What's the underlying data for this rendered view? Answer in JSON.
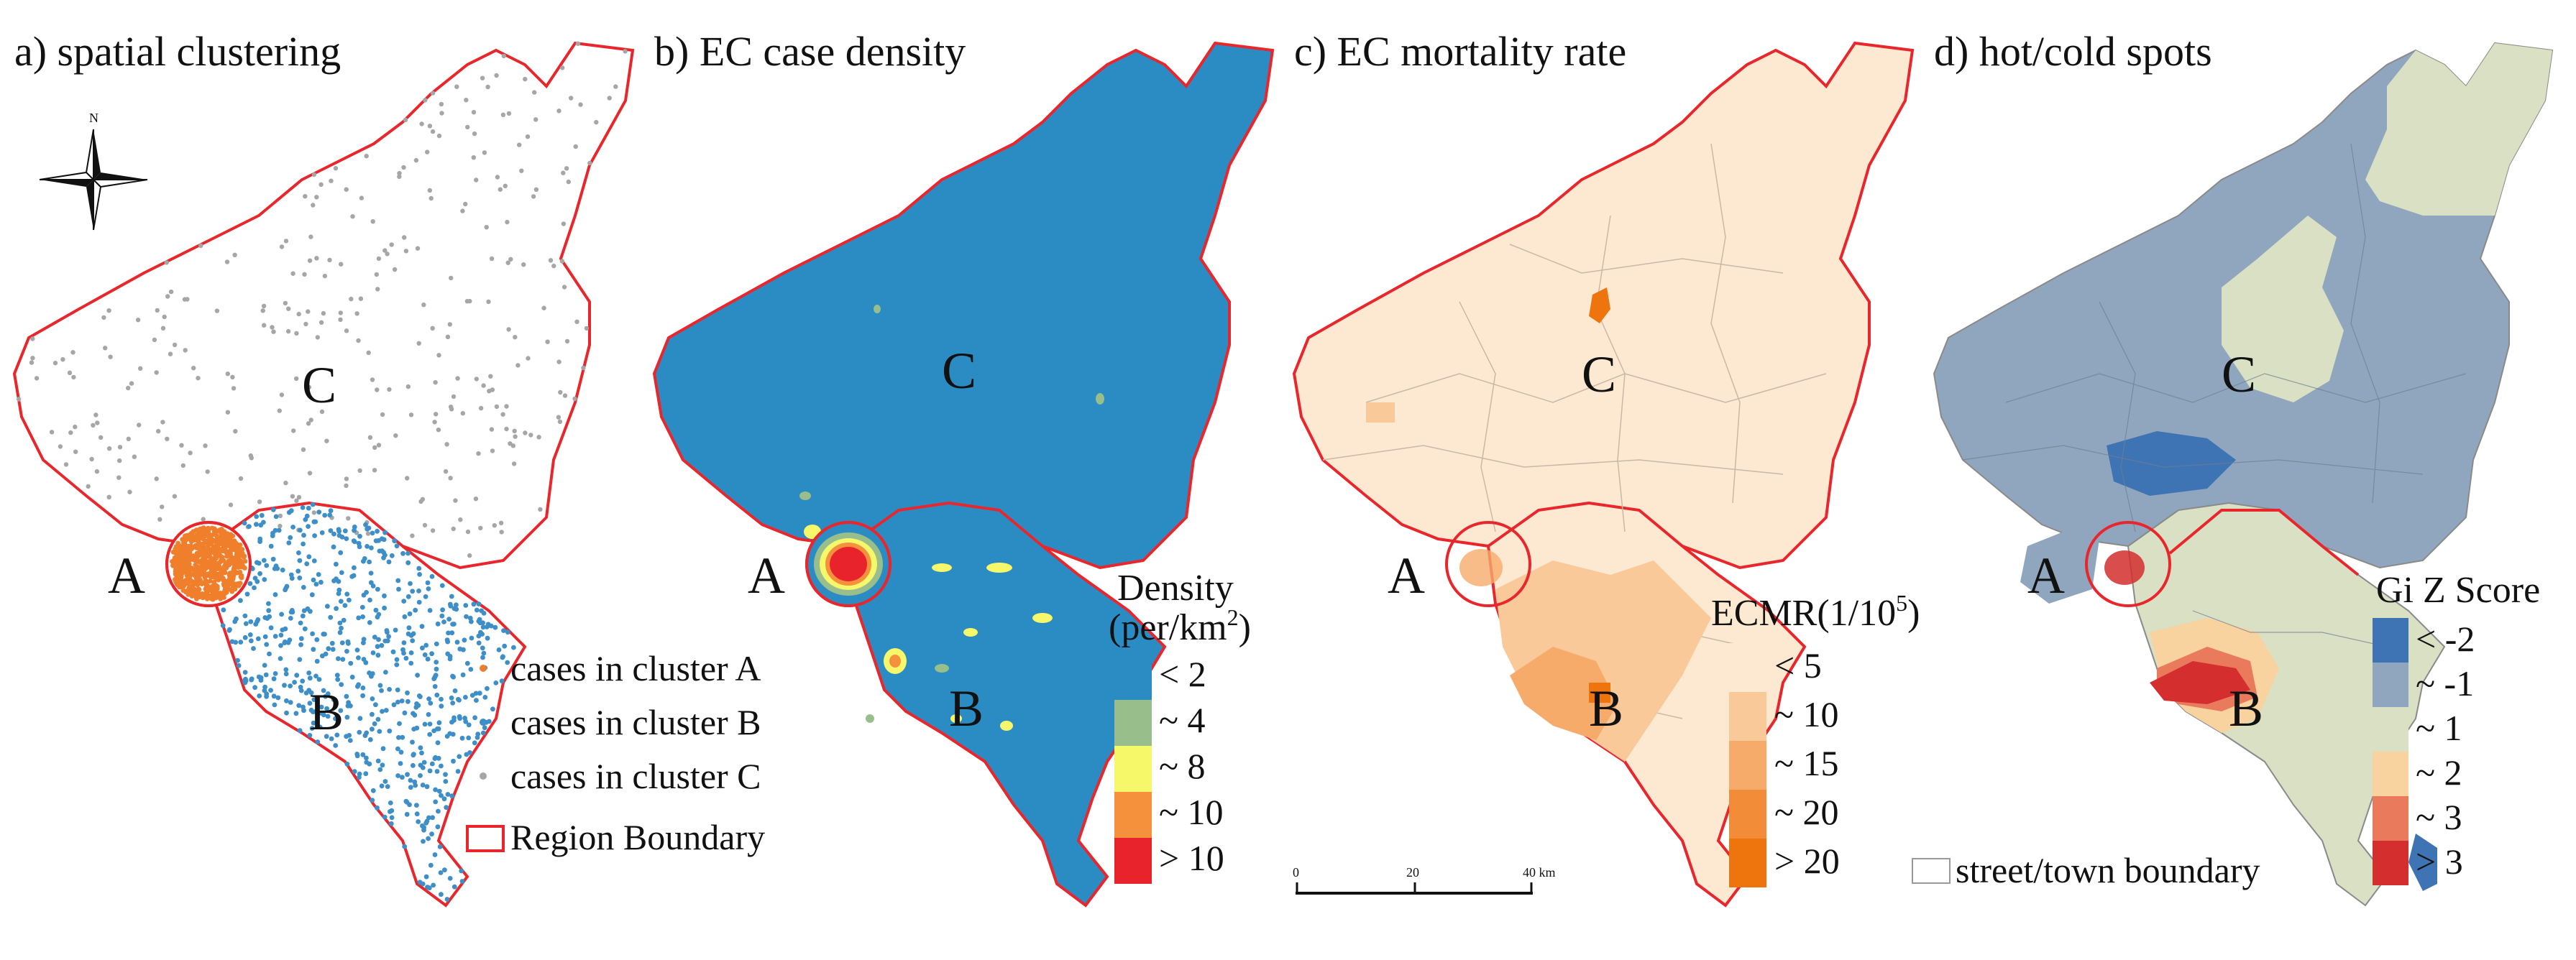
{
  "panels": {
    "a": {
      "title": "a) spatial clustering"
    },
    "b": {
      "title": "b) EC case density"
    },
    "c": {
      "title": "c) EC mortality rate"
    },
    "d": {
      "title": "d) hot/cold spots"
    }
  },
  "region_labels": {
    "A": "A",
    "B": "B",
    "C": "C"
  },
  "north_arrow": {
    "label": "N",
    "icon": "compass-rose-icon"
  },
  "legend_a": {
    "items": [
      {
        "label": "cases in cluster A",
        "color": "#f07f2b"
      },
      {
        "label": "cases in cluster B",
        "color": "#3e8fc8"
      },
      {
        "label": "cases in cluster C",
        "color": "#a6a6a6"
      },
      {
        "label": "Region Boundary",
        "color": "#e8262b"
      }
    ]
  },
  "legend_b": {
    "title1": "Density",
    "title2": "(per/km",
    "title_sup": "2",
    "title_close": ")",
    "items": [
      {
        "label": "< 2",
        "color": "#2b8cc4"
      },
      {
        "label": "~ 4",
        "color": "#98be8c"
      },
      {
        "label": "~ 8",
        "color": "#f7f76a"
      },
      {
        "label": "~ 10",
        "color": "#f5913c"
      },
      {
        "label": "> 10",
        "color": "#e8232b"
      }
    ]
  },
  "legend_c": {
    "title": "ECMR(1/10",
    "title_sup": "5",
    "title_close": ")",
    "items": [
      {
        "label": "< 5",
        "color": "#fde9d1"
      },
      {
        "label": "~ 10",
        "color": "#f9c99a"
      },
      {
        "label": "~ 15",
        "color": "#f6ab6a"
      },
      {
        "label": "~ 20",
        "color": "#f28c39"
      },
      {
        "label": "> 20",
        "color": "#ee750e"
      }
    ]
  },
  "legend_d": {
    "title": "Gi Z Score",
    "items": [
      {
        "label": "< -2",
        "color": "#3f74b4"
      },
      {
        "label": "~ -1",
        "color": "#8fa6be"
      },
      {
        "label": "~ 1",
        "color": "#d9e0c3"
      },
      {
        "label": "~ 2",
        "color": "#f8d3a0"
      },
      {
        "label": "~ 3",
        "color": "#e97a5b"
      },
      {
        "label": "> 3",
        "color": "#d42e2e"
      }
    ],
    "boundary_label": "street/town boundary"
  },
  "scale_bar": {
    "ticks": [
      "0",
      "20",
      "40 km"
    ]
  },
  "colors": {
    "boundary": "#e8262b",
    "density_base": "#2b8cc4",
    "mortality_base": "#fde9d1",
    "hotcold_base": "#8fa6be"
  }
}
